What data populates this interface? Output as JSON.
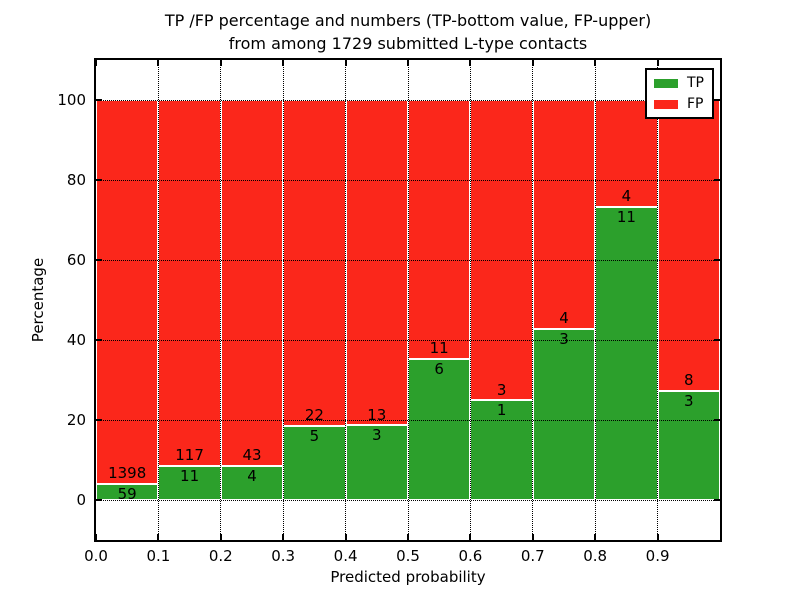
{
  "title": {
    "line1": "TP /FP percentage and numbers (TP-bottom value, FP-upper)",
    "line2": "from among 1729 submitted L-type contacts"
  },
  "chart_data": {
    "type": "bar",
    "stacked": true,
    "normalized_to_percent": true,
    "title": "TP /FP percentage and numbers (TP-bottom value, FP-upper) from among 1729 submitted L-type contacts",
    "xlabel": "Predicted probability",
    "ylabel": "Percentage",
    "total_contacts": 1729,
    "categories": [
      "0.0-0.1",
      "0.1-0.2",
      "0.2-0.3",
      "0.3-0.4",
      "0.4-0.5",
      "0.5-0.6",
      "0.6-0.7",
      "0.7-0.8",
      "0.8-0.9",
      "0.9-1.0"
    ],
    "x_tick_labels": [
      "0.0",
      "0.1",
      "0.2",
      "0.3",
      "0.4",
      "0.5",
      "0.6",
      "0.7",
      "0.8",
      "0.9"
    ],
    "y_tick_values": [
      0,
      20,
      40,
      60,
      80,
      100
    ],
    "xlim": [
      0.0,
      1.0
    ],
    "ylim": [
      -10,
      110
    ],
    "bin_width": 0.1,
    "grid": true,
    "legend_position": "upper right",
    "series": [
      {
        "name": "TP",
        "color": "#2ca02c",
        "counts": [
          59,
          11,
          4,
          5,
          3,
          6,
          1,
          3,
          11,
          3
        ]
      },
      {
        "name": "FP",
        "color": "#fb271b",
        "counts": [
          1398,
          117,
          43,
          22,
          13,
          11,
          3,
          4,
          4,
          8
        ]
      }
    ],
    "tp_percent": [
      4.0,
      8.6,
      8.5,
      18.5,
      18.8,
      35.3,
      25.0,
      42.9,
      73.3,
      27.3
    ],
    "label_convention": "TP-bottom value, FP-upper"
  }
}
